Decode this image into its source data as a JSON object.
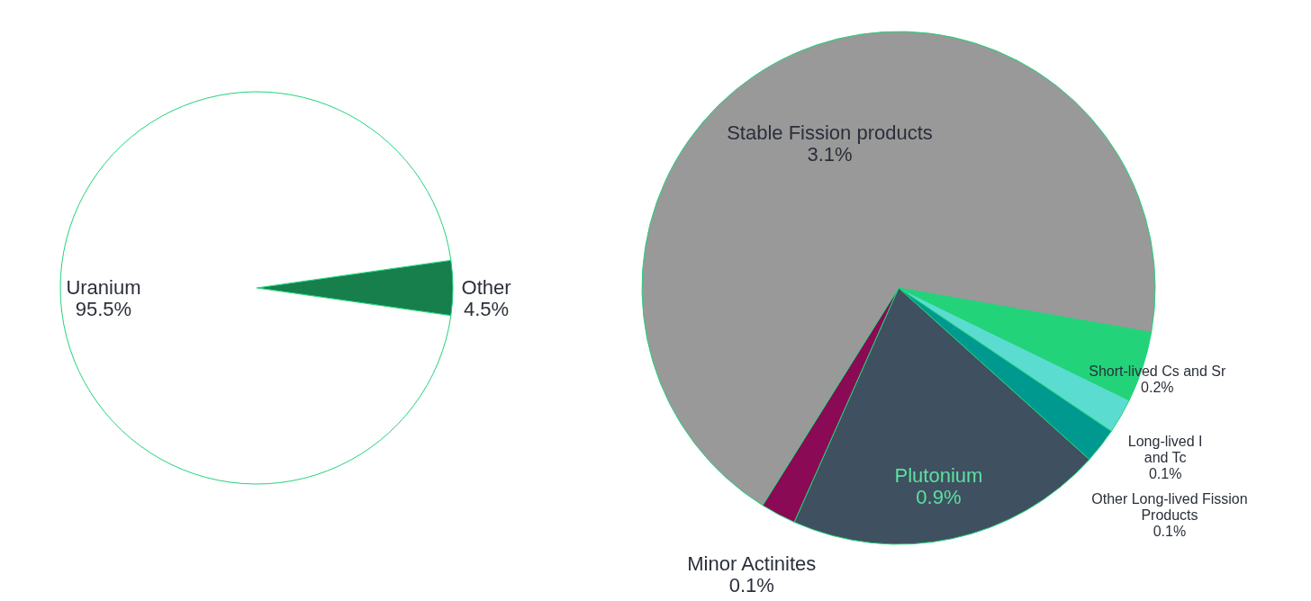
{
  "chart_data": [
    {
      "type": "pie",
      "categories": [
        "Other",
        "Uranium"
      ],
      "values": [
        4.5,
        95.5
      ],
      "colors": [
        "#167f4b",
        "#ffffff"
      ],
      "value_labels": [
        "4.5%",
        "95.5%"
      ],
      "legend": false
    },
    {
      "type": "pie",
      "categories": [
        "Short-lived Cs and Sr",
        "Long-lived I\nand Tc",
        "Other Long-lived Fission\nProducts",
        "Plutonium",
        "Minor Actinites",
        "Stable Fission products"
      ],
      "values": [
        0.2,
        0.1,
        0.1,
        0.9,
        0.1,
        3.1
      ],
      "colors": [
        "#22d37a",
        "#5bdcd1",
        "#009990",
        "#3f5060",
        "#8a0a55",
        "#999999"
      ],
      "value_labels": [
        "0.2%",
        "0.1%",
        "0.1%",
        "0.9%",
        "0.1%",
        "3.1%"
      ],
      "legend": false
    }
  ]
}
